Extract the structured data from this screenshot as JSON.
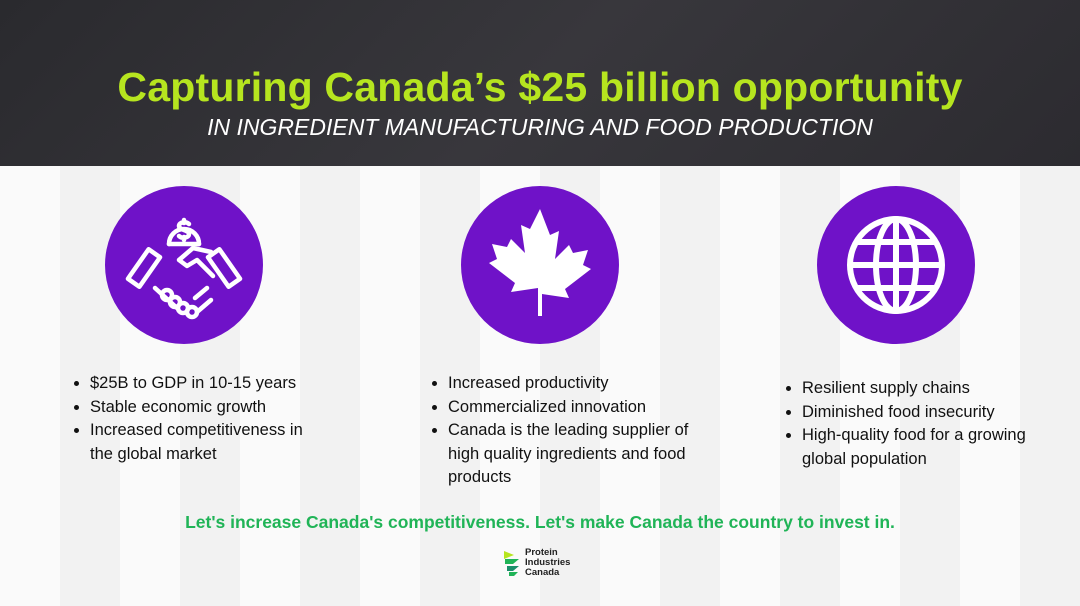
{
  "header": {
    "title": "Capturing Canada’s $25 billion opportunity",
    "subtitle": "IN INGREDIENT MANUFACTURING AND FOOD PRODUCTION"
  },
  "columns": [
    {
      "icon": "handshake-dollar-icon",
      "items": [
        "$25B to GDP in 10-15 years",
        "Stable economic growth",
        "Increased competitiveness in the global market"
      ]
    },
    {
      "icon": "maple-leaf-icon",
      "items": [
        "Increased productivity",
        "Commercialized innovation",
        "Canada is the leading supplier of high quality ingredients and food products"
      ]
    },
    {
      "icon": "globe-icon",
      "items": [
        "Resilient supply chains",
        "Diminished food insecurity",
        "High-quality food for a growing global population"
      ]
    }
  ],
  "cta": "Let's increase Canada's competitiveness. Let's make Canada the country to invest in.",
  "logo": {
    "line1": "Protein",
    "line2": "Industries",
    "line3": "Canada"
  },
  "colors": {
    "accent_green": "#b6e51f",
    "purple": "#6f12c8",
    "cta_green": "#20b457",
    "header_bg": "#2f2e33"
  }
}
